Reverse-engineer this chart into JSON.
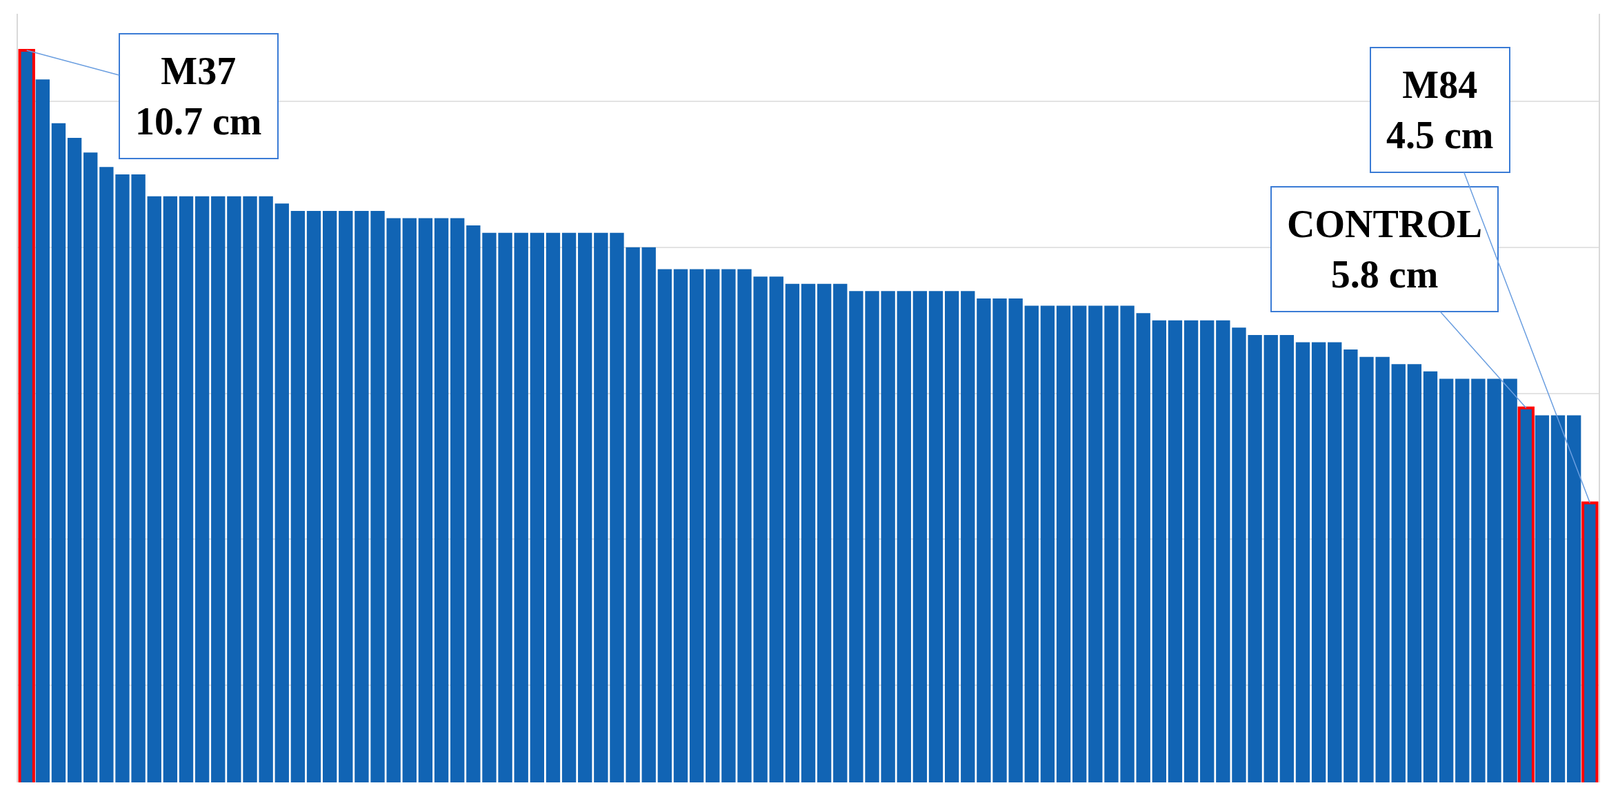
{
  "chart_data": {
    "type": "bar",
    "categories": [
      null,
      null,
      null,
      null,
      null,
      null,
      null,
      null,
      null,
      null,
      null,
      null,
      null,
      null,
      null,
      null,
      null,
      null,
      null,
      null,
      null,
      null,
      null,
      null,
      null,
      null,
      null,
      null,
      null,
      null,
      null,
      null,
      null,
      null,
      null,
      null,
      null,
      null,
      null,
      null,
      null,
      null,
      null,
      null,
      null,
      null,
      null,
      null,
      null,
      null,
      null,
      null,
      null,
      null,
      null,
      null,
      null,
      null,
      null,
      null,
      null,
      null,
      null,
      null,
      null,
      null,
      null,
      null,
      null,
      null,
      null,
      null,
      null,
      null,
      null,
      null,
      null,
      null,
      null,
      null,
      null,
      null,
      null,
      null,
      null,
      null,
      null,
      null,
      null,
      null,
      null,
      null,
      null,
      null,
      null,
      null,
      null,
      null,
      null
    ],
    "values": [
      10.7,
      10.3,
      9.7,
      9.5,
      9.3,
      9.1,
      9.0,
      9.0,
      8.7,
      8.7,
      8.7,
      8.7,
      8.7,
      8.7,
      8.7,
      8.7,
      8.6,
      8.5,
      8.5,
      8.5,
      8.5,
      8.5,
      8.5,
      8.4,
      8.4,
      8.4,
      8.4,
      8.4,
      8.3,
      8.2,
      8.2,
      8.2,
      8.2,
      8.2,
      8.2,
      8.2,
      8.2,
      8.2,
      8.0,
      8.0,
      7.7,
      7.7,
      7.7,
      7.7,
      7.7,
      7.7,
      7.6,
      7.6,
      7.5,
      7.5,
      7.5,
      7.5,
      7.4,
      7.4,
      7.4,
      7.4,
      7.4,
      7.4,
      7.4,
      7.4,
      7.3,
      7.3,
      7.3,
      7.2,
      7.2,
      7.2,
      7.2,
      7.2,
      7.2,
      7.2,
      7.1,
      7.0,
      7.0,
      7.0,
      7.0,
      7.0,
      6.9,
      6.8,
      6.8,
      6.8,
      6.7,
      6.7,
      6.7,
      6.6,
      6.5,
      6.5,
      6.4,
      6.4,
      6.3,
      6.2,
      6.2,
      6.2,
      6.2,
      6.2,
      5.8,
      5.7,
      5.7,
      5.7,
      4.5
    ],
    "value_labels": [
      "M37\n10.7 cm",
      null,
      null,
      null,
      null,
      null,
      null,
      null,
      null,
      null,
      null,
      null,
      null,
      null,
      null,
      null,
      null,
      null,
      null,
      null,
      null,
      null,
      null,
      null,
      null,
      null,
      null,
      null,
      null,
      null,
      null,
      null,
      null,
      null,
      null,
      null,
      null,
      null,
      null,
      null,
      null,
      null,
      null,
      null,
      null,
      null,
      null,
      null,
      null,
      null,
      null,
      null,
      null,
      null,
      null,
      null,
      null,
      null,
      null,
      null,
      null,
      null,
      null,
      null,
      null,
      null,
      null,
      null,
      null,
      null,
      null,
      null,
      null,
      null,
      null,
      null,
      null,
      null,
      null,
      null,
      null,
      null,
      null,
      null,
      null,
      null,
      null,
      null,
      null,
      null,
      null,
      null,
      null,
      null,
      "CONTROL\n5.8 cm",
      null,
      null,
      null,
      "M84\n4.5 cm"
    ],
    "color": "#1164b4",
    "ylim": [
      0.67,
      11.2
    ],
    "yticks": [
      {
        "value": 2,
        "label": null
      },
      {
        "value": 4,
        "label": null
      },
      {
        "value": 6,
        "label": null
      },
      {
        "value": 8,
        "label": null
      },
      {
        "value": 10,
        "label": null
      }
    ],
    "grid": "y"
  }
}
